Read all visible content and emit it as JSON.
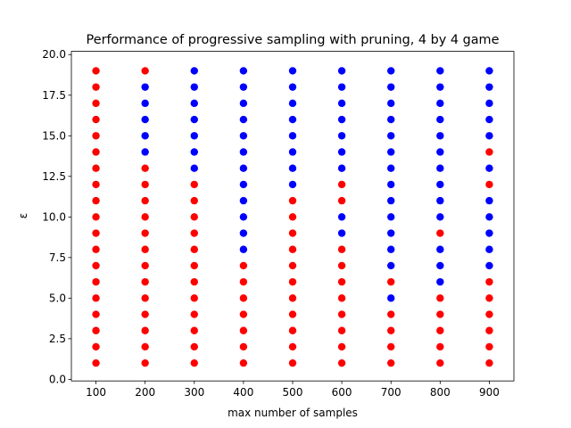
{
  "chart_data": {
    "type": "scatter",
    "title": "Performance of progressive sampling with pruning, 4 by 4 game",
    "x_label": "max number of samples",
    "y_label": "ε",
    "xlim": [
      50,
      950
    ],
    "ylim": [
      -0.1,
      20.2
    ],
    "xticks": [
      100,
      200,
      300,
      400,
      500,
      600,
      700,
      800,
      900
    ],
    "yticks": [
      {
        "value": 0,
        "label": "0.0"
      },
      2.5,
      {
        "value": 5,
        "label": "5.0"
      },
      7.5,
      {
        "value": 10,
        "label": "10.0"
      },
      12.5,
      {
        "value": 15,
        "label": "15.0"
      },
      17.5,
      {
        "value": 20,
        "label": "20.0"
      }
    ],
    "grid": false,
    "series": [
      {
        "color": "red",
        "x": [
          100,
          100,
          100,
          100,
          100,
          100,
          100,
          100,
          100,
          100,
          100,
          100,
          100,
          100,
          100,
          100,
          100,
          100,
          100,
          200,
          200,
          200,
          200,
          200,
          200,
          200,
          200,
          200,
          200,
          200,
          200,
          200,
          200,
          300,
          300,
          300,
          300,
          300,
          300,
          300,
          300,
          300,
          300,
          300,
          300,
          400,
          400,
          400,
          400,
          400,
          400,
          400,
          500,
          500,
          500,
          500,
          500,
          500,
          500,
          500,
          500,
          500,
          500,
          600,
          600,
          600,
          600,
          600,
          600,
          600,
          600,
          600,
          600,
          700,
          700,
          700,
          700,
          700,
          800,
          800,
          800,
          800,
          800,
          800,
          900,
          900,
          900,
          900,
          900,
          900,
          900,
          900
        ],
        "y": [
          1,
          2,
          3,
          4,
          5,
          6,
          7,
          8,
          9,
          10,
          11,
          12,
          13,
          14,
          15,
          16,
          17,
          18,
          19,
          1,
          2,
          3,
          4,
          5,
          6,
          7,
          8,
          9,
          10,
          11,
          12,
          13,
          19,
          1,
          2,
          3,
          4,
          5,
          6,
          7,
          8,
          9,
          10,
          11,
          12,
          1,
          2,
          3,
          4,
          5,
          6,
          7,
          1,
          2,
          3,
          4,
          5,
          6,
          7,
          8,
          9,
          10,
          11,
          1,
          2,
          3,
          4,
          5,
          6,
          7,
          8,
          11,
          12,
          1,
          2,
          3,
          4,
          6,
          1,
          2,
          3,
          4,
          5,
          9,
          1,
          2,
          3,
          4,
          5,
          6,
          12,
          14
        ]
      },
      {
        "color": "blue",
        "x": [
          200,
          200,
          200,
          200,
          200,
          300,
          300,
          300,
          300,
          300,
          300,
          300,
          400,
          400,
          400,
          400,
          400,
          400,
          400,
          400,
          400,
          400,
          400,
          400,
          500,
          500,
          500,
          500,
          500,
          500,
          500,
          500,
          600,
          600,
          600,
          600,
          600,
          600,
          600,
          600,
          600,
          700,
          700,
          700,
          700,
          700,
          700,
          700,
          700,
          700,
          700,
          700,
          700,
          700,
          700,
          800,
          800,
          800,
          800,
          800,
          800,
          800,
          800,
          800,
          800,
          800,
          800,
          800,
          900,
          900,
          900,
          900,
          900,
          900,
          900,
          900,
          900,
          900,
          900
        ],
        "y": [
          14,
          15,
          16,
          17,
          18,
          13,
          14,
          15,
          16,
          17,
          18,
          19,
          8,
          9,
          10,
          11,
          12,
          13,
          14,
          15,
          16,
          17,
          18,
          19,
          12,
          13,
          14,
          15,
          16,
          17,
          18,
          19,
          9,
          10,
          13,
          14,
          15,
          16,
          17,
          18,
          19,
          5,
          7,
          8,
          9,
          10,
          11,
          12,
          13,
          14,
          15,
          16,
          17,
          18,
          19,
          6,
          7,
          8,
          10,
          11,
          12,
          13,
          14,
          15,
          16,
          17,
          18,
          19,
          7,
          8,
          9,
          10,
          11,
          13,
          15,
          16,
          17,
          18,
          19
        ]
      }
    ]
  }
}
